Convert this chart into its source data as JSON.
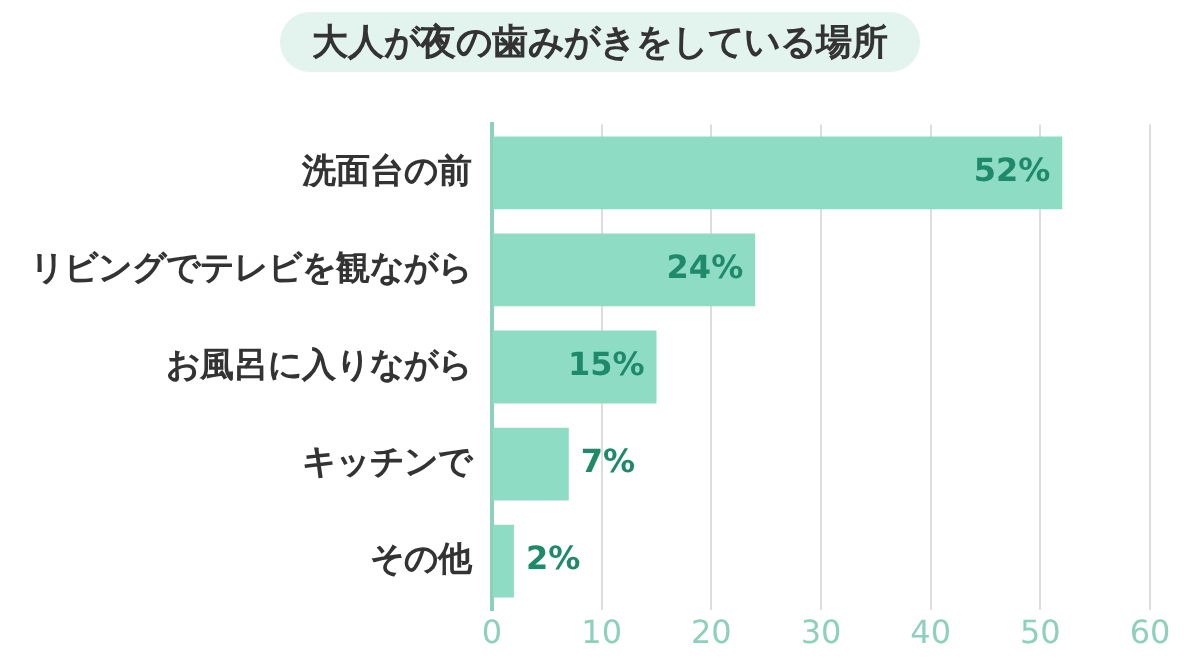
{
  "chart_data": {
    "type": "bar",
    "orientation": "horizontal",
    "title": "大人が夜の歯みがきをしている場所",
    "categories": [
      "洗面台の前",
      "リビングでテレビを観ながら",
      "お風呂に入りながら",
      "キッチンで",
      "その他"
    ],
    "values": [
      52,
      24,
      15,
      7,
      2
    ],
    "color": "#8fdcc4",
    "value_labels": [
      "52%",
      "24%",
      "15%",
      "7%",
      "2%"
    ],
    "xlim": [
      0,
      60
    ],
    "xticks": [
      0,
      10,
      20,
      30,
      40,
      50,
      60
    ],
    "grid": "x",
    "legend": false
  }
}
